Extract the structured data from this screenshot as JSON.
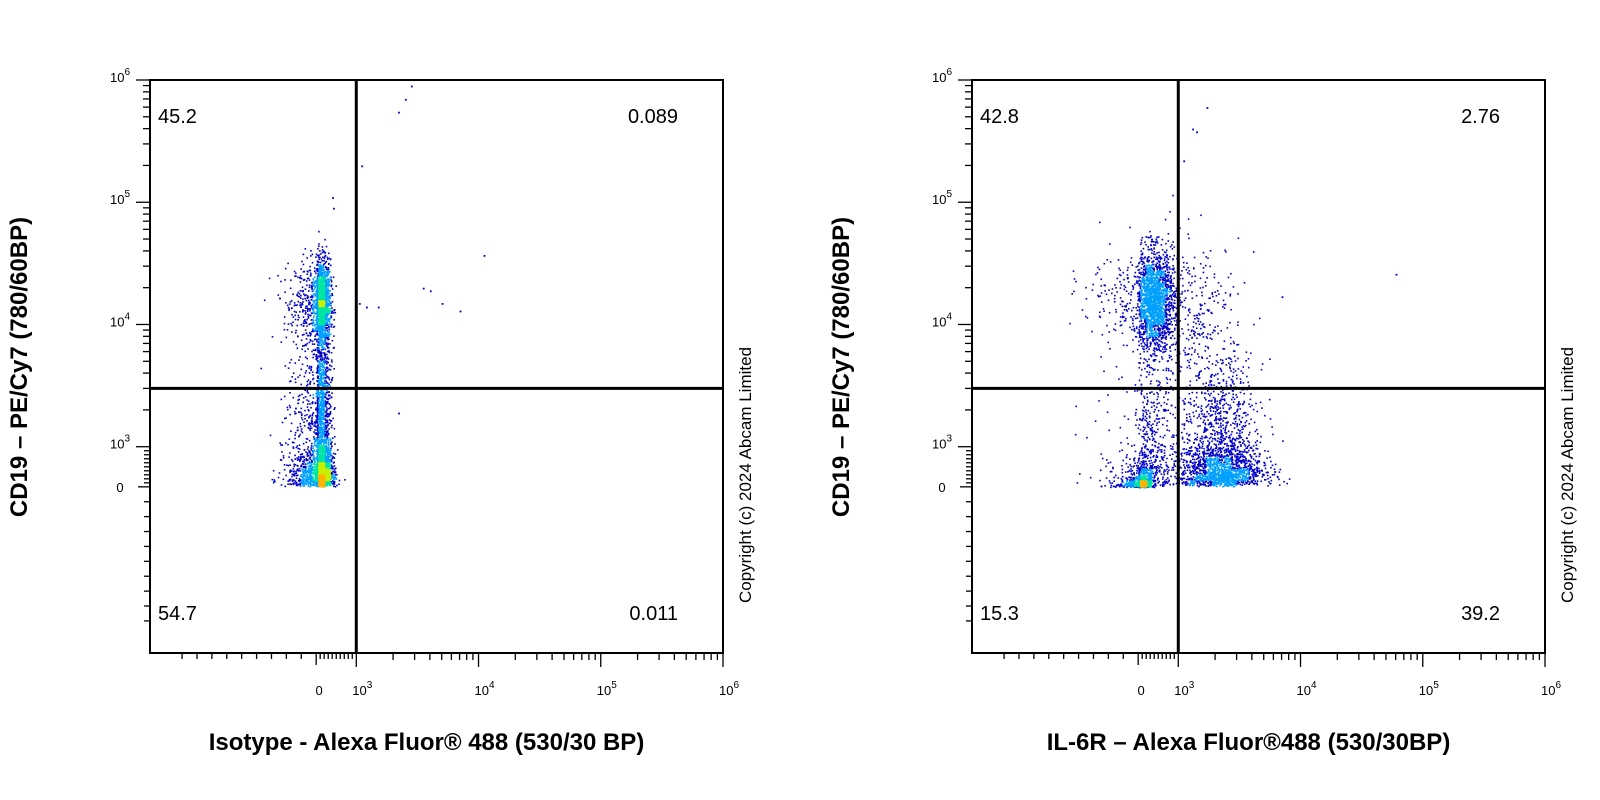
{
  "chart_data": [
    {
      "type": "scatter",
      "subtype": "flow-cytometry-density-dot-plot",
      "xlabel": "Isotype - Alexa Fluor® 488 (530/30 BP)",
      "ylabel": "CD19 – PE/Cy7 (780/60BP)",
      "x_scale": "biexponential",
      "y_scale": "biexponential",
      "x_ticks": [
        "0",
        "10^3",
        "10^4",
        "10^5",
        "10^6"
      ],
      "y_ticks": [
        "0",
        "10^3",
        "10^4",
        "10^5",
        "10^6"
      ],
      "xlim": [
        -1000,
        1000000
      ],
      "ylim": [
        -1000,
        1000000
      ],
      "gate": {
        "x": 1000,
        "y": 3000
      },
      "quadrants": {
        "upper_left": "45.2",
        "upper_right": "0.089",
        "lower_left": "54.7",
        "lower_right": "0.011"
      },
      "populations": [
        {
          "name": "",
          "x_center": 100,
          "y_center": 15000,
          "x_spread": 120,
          "y_spread": 0.18,
          "points": 1700
        },
        {
          "name": "",
          "x_center": 100,
          "y_center": 500,
          "x_spread": 140,
          "y_spread": 0.45,
          "points": 2300
        },
        {
          "name": "",
          "x_center": 100,
          "y_center": 3000,
          "x_spread": 130,
          "y_spread": 0.25,
          "points": 500
        }
      ],
      "outliers": [
        [
          2500,
          700000
        ],
        [
          2200,
          550000
        ],
        [
          2800,
          900000
        ],
        [
          1100,
          200000
        ],
        [
          1050,
          15000
        ],
        [
          1200,
          14000
        ],
        [
          1500,
          14000
        ],
        [
          3500,
          20000
        ],
        [
          4000,
          19000
        ],
        [
          5000,
          15000
        ],
        [
          7000,
          13000
        ],
        [
          11000,
          37000
        ],
        [
          2200,
          1900
        ],
        [
          400,
          110000
        ],
        [
          420,
          90000
        ]
      ],
      "grid": false,
      "color_scale": [
        "#0000c8",
        "#00a0ff",
        "#00e6a0",
        "#c8f000",
        "#ffb400",
        "#ff2800"
      ],
      "watermark": "Copyright (c) 2024 Abcam Limited"
    },
    {
      "type": "scatter",
      "subtype": "flow-cytometry-density-dot-plot",
      "xlabel": "IL-6R – Alexa Fluor®488 (530/30BP)",
      "ylabel": "CD19 – PE/Cy7 (780/60BP)",
      "x_scale": "biexponential",
      "y_scale": "biexponential",
      "x_ticks": [
        "0",
        "10^3",
        "10^4",
        "10^5",
        "10^6"
      ],
      "y_ticks": [
        "0",
        "10^3",
        "10^4",
        "10^5",
        "10^6"
      ],
      "xlim": [
        -1000,
        1000000
      ],
      "ylim": [
        -1000,
        1000000
      ],
      "gate": {
        "x": 1000,
        "y": 3000
      },
      "quadrants": {
        "upper_left": "42.8",
        "upper_right": "2.76",
        "lower_left": "15.3",
        "lower_right": "39.2"
      },
      "populations": [
        {
          "name": "",
          "x_center": 350,
          "y_center": 16000,
          "x_spread": 260,
          "y_spread": 0.2,
          "points": 1900
        },
        {
          "name": "",
          "x_center": 2200,
          "y_center": 600,
          "x_spread": 0.17,
          "y_spread": 0.45,
          "points": 2000
        },
        {
          "name": "",
          "x_center": 80,
          "y_center": 100,
          "x_spread": 120,
          "y_spread": 0.5,
          "points": 700
        },
        {
          "name": "",
          "x_center": 300,
          "y_center": 900,
          "x_spread": 300,
          "y_spread": 0.5,
          "points": 500
        },
        {
          "name": "",
          "x_center": 1300,
          "y_center": 12000,
          "x_spread": 0.2,
          "y_spread": 0.3,
          "points": 300
        }
      ],
      "outliers": [
        [
          1300,
          400000
        ],
        [
          1400,
          380000
        ],
        [
          1700,
          600000
        ],
        [
          1100,
          220000
        ],
        [
          60000,
          26000
        ],
        [
          7000,
          17000
        ]
      ],
      "grid": false,
      "color_scale": [
        "#0000c8",
        "#00a0ff",
        "#00e6a0",
        "#c8f000",
        "#ffb400",
        "#ff2800"
      ],
      "watermark": "Copyright (c) 2024 Abcam Limited"
    }
  ]
}
